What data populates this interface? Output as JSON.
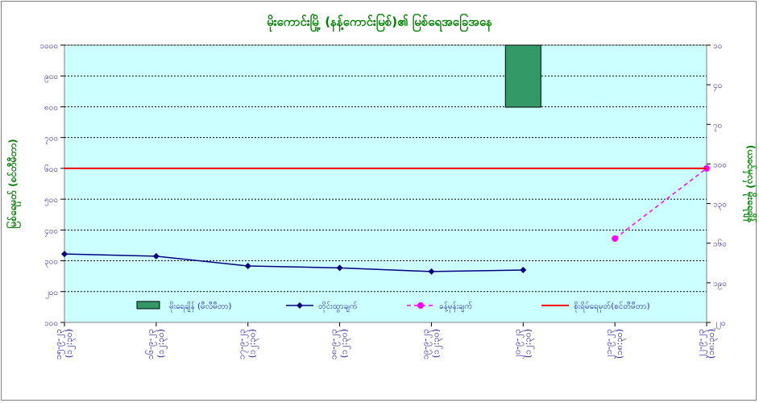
{
  "chart_data": {
    "type": "line",
    "title": "မိုးကောင်းမြို့ (နန့်ကောင်းမြစ်)၏ မြစ်ရေအခြေအနေ",
    "ylabel_left": "မြစ်ရေမှတ် (စင်တီမီတာ)",
    "ylabel_right": "(ယခင်မှလှ) မိုးရေချိန်",
    "left_axis": {
      "min": 100,
      "max": 1000,
      "step": 100,
      "tick_labels": [
        "၁၀၀",
        "၂၀၀",
        "၃၀၀",
        "၄၀၀",
        "၅၀၀",
        "၆၀၀",
        "၇၀၀",
        "၈၀၀",
        "၉၀၀",
        "၁၀၀၀"
      ]
    },
    "right_axis": {
      "top": 10,
      "bottom": 220,
      "step": 30,
      "tick_labels": [
        "၁၀",
        "၄၀",
        "၇၀",
        "၁၀၀",
        "၁၃၀",
        "၁၆၀",
        "၁၉၀",
        "၂၂၀"
      ]
    },
    "categories": [
      [
        "၁၅-၉-၂၃",
        "(၁၂:၃၀)"
      ],
      [
        "၁၆-၉-၂၃",
        "(၁၂:၃၀)"
      ],
      [
        "၁၇-၉-၂၃",
        "(၁၂:၃၀)"
      ],
      [
        "၁၈-၉-၂၃",
        "(၁၂:၃၀)"
      ],
      [
        "၁၉-၉-၂၃",
        "(၁၂:၃၀)"
      ],
      [
        "၂၀-၉-၂၃",
        "(၁၂:၃၀)"
      ],
      [
        "၂၁-၉-၂၃",
        "(၁၈:၃၀)"
      ],
      [
        "၂၂-၉-၂၃",
        "(၁၈:၃၀)"
      ]
    ],
    "series": [
      {
        "name": "မိုးရေချိန် (မီလီမီတာ)",
        "kind": "bar",
        "axis": "right",
        "color": "#339966",
        "values": [
          null,
          null,
          null,
          null,
          null,
          57,
          null,
          null
        ]
      },
      {
        "name": "တိုင်းထွာချက်",
        "kind": "line",
        "axis": "left",
        "color": "#000080",
        "values": [
          322,
          315,
          283,
          277,
          265,
          270,
          null,
          null
        ]
      },
      {
        "name": "ခန့်မှန်းချက်",
        "kind": "dashed-line",
        "axis": "left",
        "color": "#ff00ff",
        "values": [
          null,
          null,
          null,
          null,
          null,
          null,
          372,
          600
        ]
      },
      {
        "name": "စိုးရိမ်ရေမှတ်(စင်တီမီတာ)",
        "kind": "hline",
        "axis": "left",
        "color": "#ff0000",
        "value": 600
      }
    ],
    "grid": true,
    "legend_position": "bottom"
  }
}
